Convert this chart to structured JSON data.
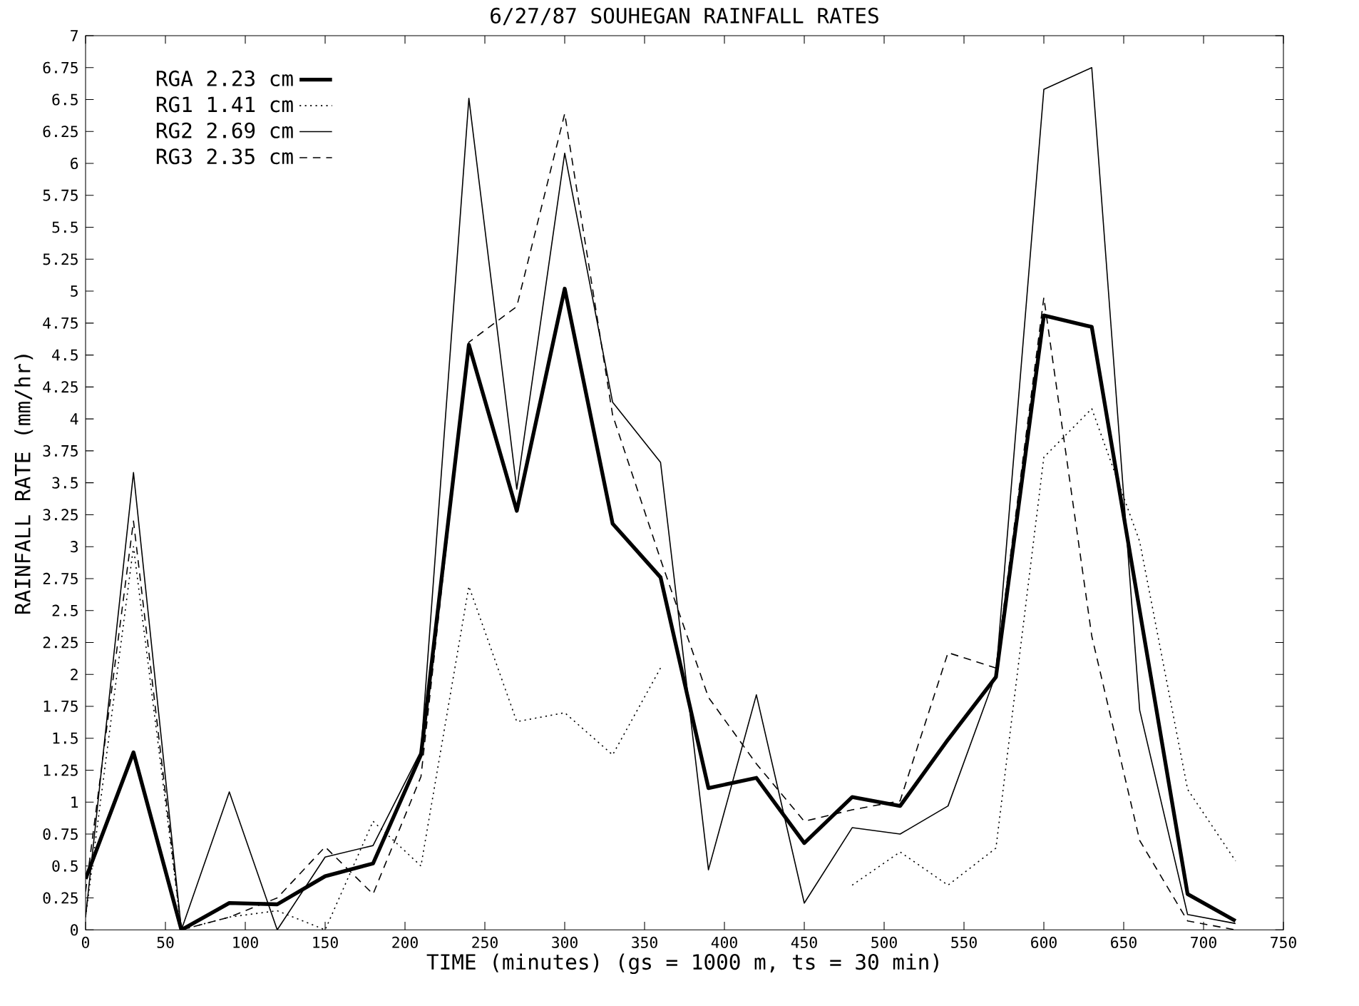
{
  "chart_data": {
    "type": "line",
    "title": "6/27/87 SOUHEGAN RAINFALL RATES",
    "xlabel": "TIME  (minutes)  (gs = 1000 m, ts = 30 min)",
    "ylabel": "RAINFALL RATE (mm/hr)",
    "x": [
      0,
      30,
      60,
      90,
      120,
      150,
      180,
      210,
      240,
      270,
      300,
      330,
      360,
      390,
      420,
      450,
      480,
      510,
      540,
      570,
      600,
      630,
      660,
      690,
      720
    ],
    "series": [
      {
        "name": "RGA 2.23 cm",
        "color": "#000000",
        "line_style": "solid",
        "values": [
          0.4,
          1.39,
          0,
          0.21,
          0.2,
          0.42,
          0.52,
          1.37,
          4.58,
          3.28,
          5.02,
          3.18,
          2.76,
          1.11,
          1.19,
          0.68,
          1.04,
          0.97,
          1.49,
          1.98,
          4.81,
          4.72,
          2.5,
          0.28,
          0.07
        ]
      },
      {
        "name": "RG1 1.41 cm",
        "color": "#000000",
        "line_style": "dotted",
        "values": [
          0.1,
          3.0,
          0,
          0.1,
          0.15,
          0,
          0.85,
          0.5,
          2.69,
          1.63,
          1.7,
          1.37,
          2.05,
          null,
          null,
          null,
          0.35,
          0.61,
          0.35,
          0.64,
          3.7,
          4.08,
          3.04,
          1.1,
          0.54
        ]
      },
      {
        "name": "RG2 2.69 cm",
        "color": "#000000",
        "line_style": "solid",
        "values": [
          0.1,
          3.58,
          0,
          1.08,
          0,
          0.57,
          0.66,
          1.4,
          6.51,
          3.45,
          6.08,
          4.13,
          3.66,
          0.47,
          1.84,
          0.21,
          0.8,
          0.75,
          0.97,
          2.0,
          6.58,
          6.75,
          1.72,
          0.12,
          0.05
        ]
      },
      {
        "name": "RG3 2.35 cm",
        "color": "#000000",
        "line_style": "dashed",
        "values": [
          0.3,
          3.2,
          0,
          0.1,
          0.25,
          0.65,
          0.28,
          1.2,
          4.6,
          4.88,
          6.39,
          4.03,
          2.9,
          1.82,
          1.3,
          0.85,
          0.94,
          1.01,
          2.17,
          2.05,
          4.95,
          2.3,
          0.7,
          0.07,
          0
        ]
      }
    ],
    "xlim": [
      0,
      750
    ],
    "ylim": [
      0,
      7
    ],
    "xticks": [
      0,
      50,
      100,
      150,
      200,
      250,
      300,
      350,
      400,
      450,
      500,
      550,
      600,
      650,
      700,
      750
    ],
    "yticks": [
      0,
      0.25,
      0.5,
      0.75,
      1,
      1.25,
      1.5,
      1.75,
      2,
      2.25,
      2.5,
      2.75,
      3,
      3.25,
      3.5,
      3.75,
      4,
      4.25,
      4.5,
      4.75,
      5,
      5.25,
      5.5,
      5.75,
      6,
      6.25,
      6.5,
      6.75,
      7
    ],
    "legend": "top left",
    "grid": false,
    "marker": "none"
  }
}
